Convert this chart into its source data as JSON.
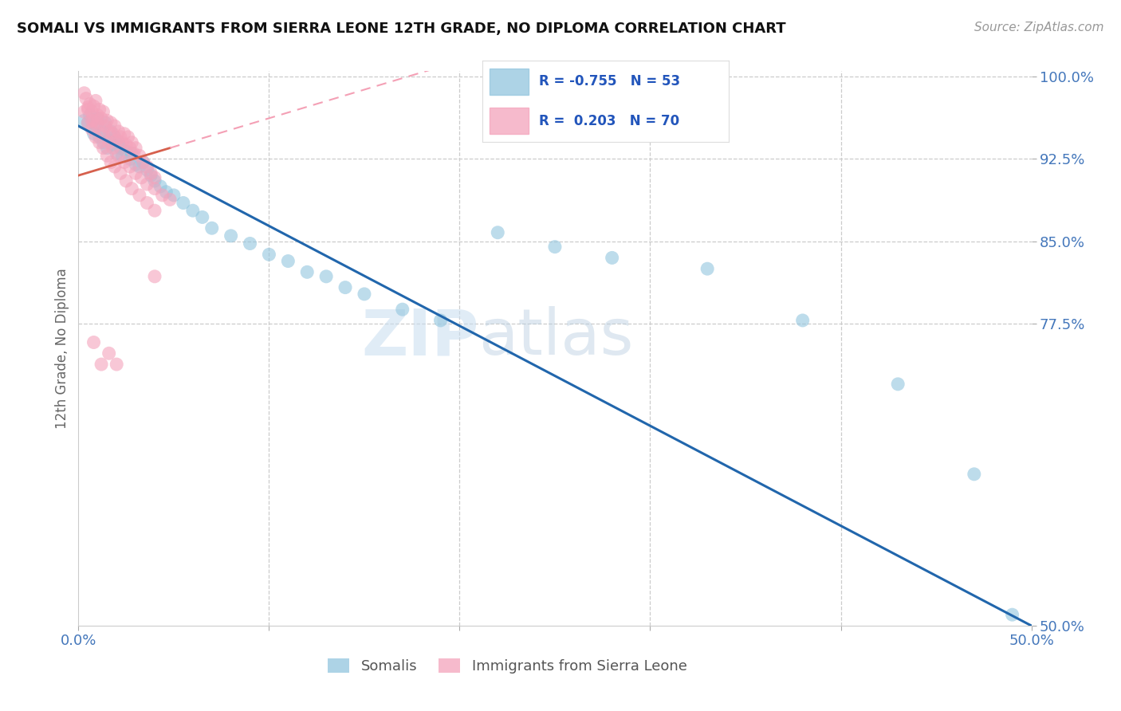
{
  "title": "SOMALI VS IMMIGRANTS FROM SIERRA LEONE 12TH GRADE, NO DIPLOMA CORRELATION CHART",
  "source": "Source: ZipAtlas.com",
  "ylabel": "12th Grade, No Diploma",
  "watermark_zip": "ZIP",
  "watermark_atlas": "atlas",
  "xlim": [
    0.0,
    0.5
  ],
  "ylim": [
    0.5,
    1.005
  ],
  "x_tick_pos": [
    0.0,
    0.1,
    0.2,
    0.3,
    0.4,
    0.5
  ],
  "x_tick_labels": [
    "0.0%",
    "",
    "",
    "",
    "",
    "50.0%"
  ],
  "y_tick_pos": [
    0.5,
    0.775,
    0.85,
    0.925,
    1.0
  ],
  "y_tick_labels": [
    "50.0%",
    "77.5%",
    "85.0%",
    "92.5%",
    "100.0%"
  ],
  "legend_blue_r": "-0.755",
  "legend_blue_n": "53",
  "legend_pink_r": "0.203",
  "legend_pink_n": "70",
  "legend_blue_label": "Somalis",
  "legend_pink_label": "Immigrants from Sierra Leone",
  "blue_color": "#92c5de",
  "pink_color": "#f4a3bb",
  "blue_line_color": "#2166ac",
  "pink_line_color": "#d6604d",
  "pink_dash_color": "#f4a0b5",
  "somali_x": [
    0.003,
    0.005,
    0.006,
    0.008,
    0.009,
    0.01,
    0.011,
    0.012,
    0.013,
    0.014,
    0.015,
    0.016,
    0.017,
    0.018,
    0.019,
    0.02,
    0.021,
    0.022,
    0.023,
    0.025,
    0.027,
    0.028,
    0.03,
    0.032,
    0.034,
    0.036,
    0.038,
    0.04,
    0.043,
    0.046,
    0.05,
    0.055,
    0.06,
    0.065,
    0.07,
    0.08,
    0.09,
    0.1,
    0.11,
    0.12,
    0.13,
    0.14,
    0.15,
    0.17,
    0.19,
    0.22,
    0.25,
    0.28,
    0.33,
    0.38,
    0.43,
    0.47,
    0.49
  ],
  "somali_y": [
    0.96,
    0.958,
    0.965,
    0.948,
    0.955,
    0.962,
    0.945,
    0.95,
    0.94,
    0.958,
    0.935,
    0.942,
    0.95,
    0.938,
    0.945,
    0.93,
    0.94,
    0.935,
    0.928,
    0.932,
    0.925,
    0.93,
    0.92,
    0.918,
    0.922,
    0.915,
    0.91,
    0.905,
    0.9,
    0.895,
    0.892,
    0.885,
    0.878,
    0.872,
    0.862,
    0.855,
    0.848,
    0.838,
    0.832,
    0.822,
    0.818,
    0.808,
    0.802,
    0.788,
    0.778,
    0.858,
    0.845,
    0.835,
    0.825,
    0.778,
    0.72,
    0.638,
    0.51
  ],
  "sierra_leone_x": [
    0.003,
    0.004,
    0.005,
    0.006,
    0.007,
    0.008,
    0.008,
    0.009,
    0.01,
    0.01,
    0.011,
    0.012,
    0.013,
    0.014,
    0.015,
    0.016,
    0.017,
    0.018,
    0.019,
    0.02,
    0.021,
    0.022,
    0.023,
    0.024,
    0.025,
    0.026,
    0.027,
    0.028,
    0.029,
    0.03,
    0.032,
    0.034,
    0.036,
    0.038,
    0.04,
    0.005,
    0.007,
    0.01,
    0.013,
    0.016,
    0.018,
    0.021,
    0.024,
    0.027,
    0.03,
    0.033,
    0.036,
    0.04,
    0.044,
    0.048,
    0.003,
    0.005,
    0.007,
    0.009,
    0.011,
    0.013,
    0.015,
    0.017,
    0.019,
    0.022,
    0.025,
    0.028,
    0.032,
    0.036,
    0.04,
    0.008,
    0.012,
    0.016,
    0.02,
    0.04
  ],
  "sierra_leone_y": [
    0.985,
    0.98,
    0.97,
    0.975,
    0.968,
    0.973,
    0.96,
    0.978,
    0.965,
    0.958,
    0.97,
    0.962,
    0.968,
    0.955,
    0.96,
    0.95,
    0.958,
    0.948,
    0.955,
    0.942,
    0.95,
    0.945,
    0.94,
    0.948,
    0.938,
    0.945,
    0.935,
    0.94,
    0.93,
    0.935,
    0.928,
    0.922,
    0.918,
    0.912,
    0.908,
    0.972,
    0.96,
    0.955,
    0.948,
    0.94,
    0.935,
    0.928,
    0.922,
    0.918,
    0.912,
    0.908,
    0.902,
    0.898,
    0.892,
    0.888,
    0.968,
    0.958,
    0.952,
    0.945,
    0.94,
    0.935,
    0.928,
    0.922,
    0.918,
    0.912,
    0.905,
    0.898,
    0.892,
    0.885,
    0.878,
    0.758,
    0.738,
    0.748,
    0.738,
    0.818
  ]
}
